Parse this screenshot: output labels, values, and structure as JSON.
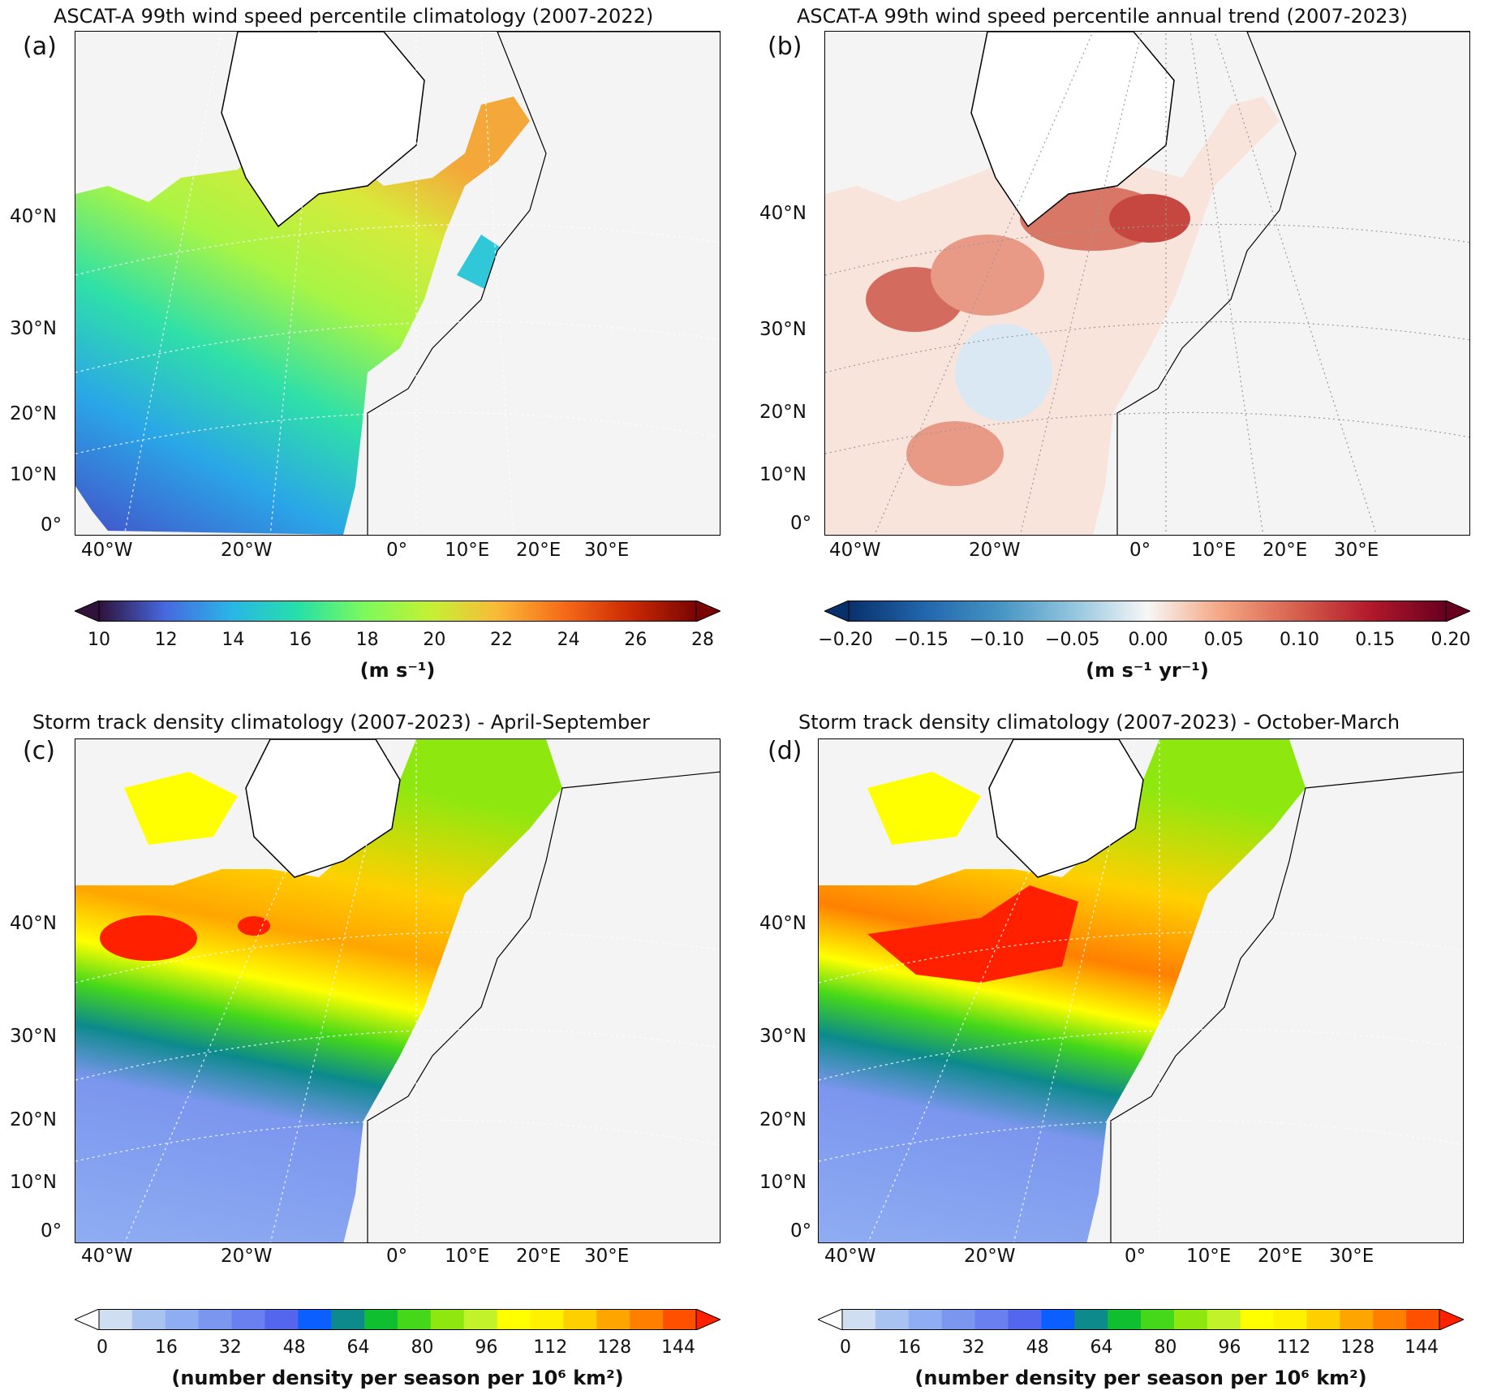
{
  "chart_data": [
    {
      "type": "heatmap",
      "panel_label": "(a)",
      "title": "ASCAT-A 99th wind speed percentile climatology (2007-2022)",
      "lat_labels": [
        "40°N",
        "30°N",
        "20°N",
        "10°N",
        "0°"
      ],
      "lon_labels": [
        "40°W",
        "20°W",
        "0°",
        "10°E",
        "20°E",
        "30°E"
      ],
      "colorbar": {
        "ticks": [
          "10",
          "12",
          "14",
          "16",
          "18",
          "20",
          "22",
          "24",
          "26",
          "28"
        ],
        "range": [
          10,
          28
        ],
        "colors": [
          "#30123b",
          "#4669e0",
          "#29b6e6",
          "#26e0a8",
          "#7cf95c",
          "#c4f134",
          "#f9ba38",
          "#f66b18",
          "#cb2a04",
          "#7a0403"
        ],
        "unit": "(m s⁻¹)"
      }
    },
    {
      "type": "heatmap",
      "panel_label": "(b)",
      "title": "ASCAT-A 99th wind speed percentile annual trend (2007-2023)",
      "lat_labels": [
        "40°N",
        "30°N",
        "20°N",
        "10°N",
        "0°"
      ],
      "lon_labels": [
        "40°W",
        "20°W",
        "0°",
        "10°E",
        "20°E",
        "30°E"
      ],
      "colorbar": {
        "ticks": [
          "−0.20",
          "−0.15",
          "−0.10",
          "−0.05",
          "0.00",
          "0.05",
          "0.10",
          "0.15",
          "0.20"
        ],
        "range": [
          -0.2,
          0.2
        ],
        "colors": [
          "#08306b",
          "#2166ac",
          "#4393c3",
          "#92c5de",
          "#f7f7f7",
          "#f4a582",
          "#d6604d",
          "#b2182b",
          "#67001f"
        ],
        "unit": "(m s⁻¹ yr⁻¹)"
      }
    },
    {
      "type": "heatmap",
      "panel_label": "(c)",
      "title": "Storm track density climatology (2007-2023) - April-September",
      "lat_labels": [
        "40°N",
        "30°N",
        "20°N",
        "10°N",
        "0°"
      ],
      "lon_labels": [
        "40°W",
        "20°W",
        "0°",
        "10°E",
        "20°E",
        "30°E"
      ],
      "colorbar": {
        "ticks": [
          "0",
          "16",
          "32",
          "48",
          "64",
          "80",
          "96",
          "112",
          "128",
          "144"
        ],
        "range": [
          0,
          152
        ],
        "levels": [
          "#ffffff",
          "#cfdef0",
          "#a8c3f0",
          "#8fadf2",
          "#7b96ee",
          "#6a7ff0",
          "#5566ee",
          "#0b5fff",
          "#0c8a8c",
          "#0fbf2f",
          "#45d81a",
          "#8ee810",
          "#c2f22a",
          "#ffff00",
          "#fff200",
          "#ffd000",
          "#ffa500",
          "#ff8000",
          "#ff5000",
          "#ff2000"
        ],
        "unit": "(number density per season per 10⁶ km²)"
      }
    },
    {
      "type": "heatmap",
      "panel_label": "(d)",
      "title": "Storm track density climatology (2007-2023) - October-March",
      "lat_labels": [
        "40°N",
        "30°N",
        "20°N",
        "10°N",
        "0°"
      ],
      "lon_labels": [
        "40°W",
        "20°W",
        "0°",
        "10°E",
        "20°E",
        "30°E"
      ],
      "colorbar": {
        "ticks": [
          "0",
          "16",
          "32",
          "48",
          "64",
          "80",
          "96",
          "112",
          "128",
          "144"
        ],
        "range": [
          0,
          152
        ],
        "levels": [
          "#ffffff",
          "#cfdef0",
          "#a8c3f0",
          "#8fadf2",
          "#7b96ee",
          "#6a7ff0",
          "#5566ee",
          "#0b5fff",
          "#0c8a8c",
          "#0fbf2f",
          "#45d81a",
          "#8ee810",
          "#c2f22a",
          "#ffff00",
          "#fff200",
          "#ffd000",
          "#ffa500",
          "#ff8000",
          "#ff5000",
          "#ff2000"
        ],
        "unit": "(number density per season per 10⁶ km²)"
      }
    }
  ]
}
